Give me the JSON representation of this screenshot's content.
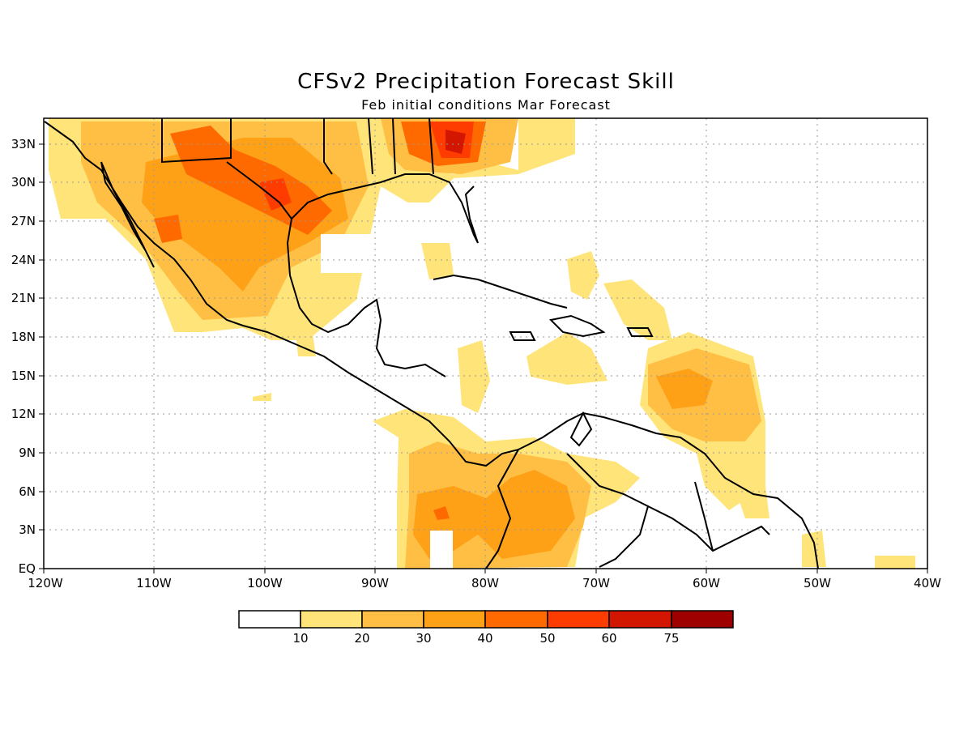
{
  "title": "CFSv2 Precipitation Forecast Skill",
  "subtitle": "Feb initial conditions  Mar Forecast",
  "lat_ticks": [
    "EQ",
    "3N",
    "6N",
    "9N",
    "12N",
    "15N",
    "18N",
    "21N",
    "24N",
    "27N",
    "30N",
    "33N"
  ],
  "lon_ticks": [
    "120W",
    "110W",
    "100W",
    "90W",
    "80W",
    "70W",
    "60W",
    "50W",
    "40W"
  ],
  "colorbar": {
    "levels": [
      "10",
      "20",
      "30",
      "40",
      "50",
      "60",
      "75"
    ],
    "colors": [
      "#ffffff",
      "#ffe47a",
      "#ffbf45",
      "#ffa117",
      "#ff6a00",
      "#ff3c00",
      "#d21600",
      "#9e0000"
    ]
  },
  "palette": {
    "c10": "#ffe47a",
    "c20": "#ffbf45",
    "c30": "#ffa117",
    "c40": "#ff6a00",
    "c50": "#ff3c00",
    "c60": "#d21600",
    "c75": "#9e0000"
  },
  "map": {
    "lon_range": [
      -120,
      -40
    ],
    "lat_range": [
      0,
      35
    ],
    "grid": "dotted"
  }
}
